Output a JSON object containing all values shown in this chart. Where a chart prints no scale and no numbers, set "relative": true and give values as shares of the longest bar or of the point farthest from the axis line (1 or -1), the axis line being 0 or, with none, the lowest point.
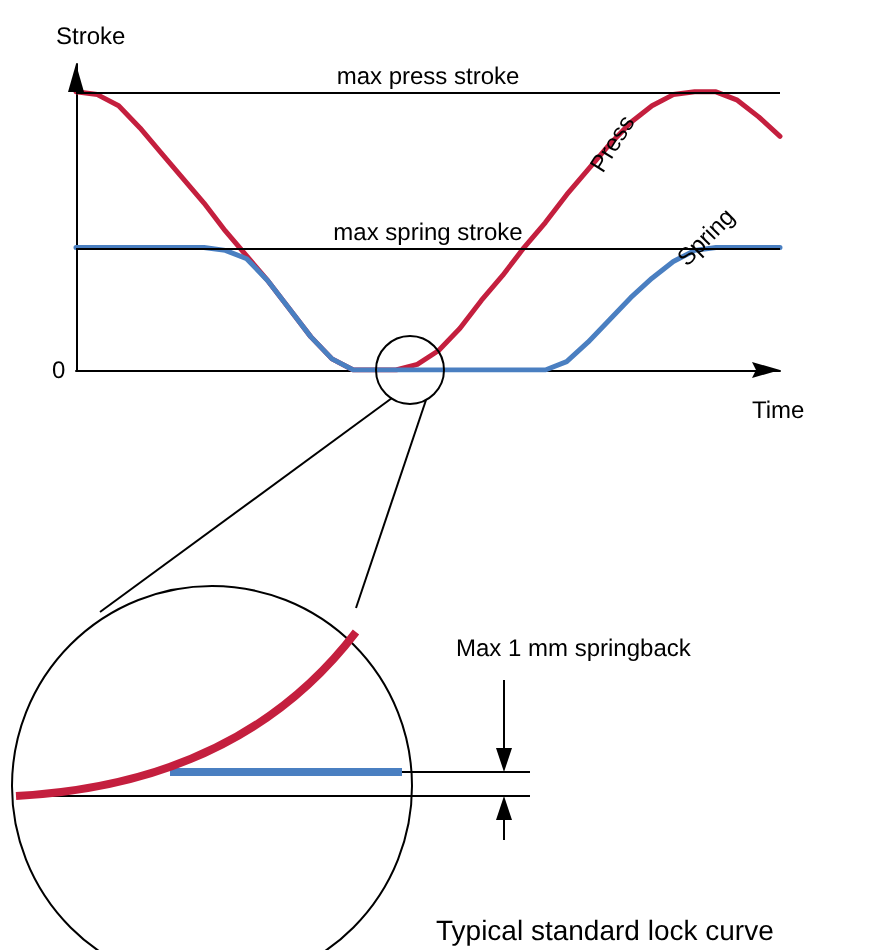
{
  "chart_data": {
    "type": "line",
    "relative": true,
    "xlabel": "Time",
    "ylabel": "Stroke",
    "grid": false,
    "legend": false,
    "marker": "none",
    "line_style": "solid",
    "categories": [
      null,
      null,
      null,
      null,
      null,
      null,
      null,
      null,
      null,
      null,
      null,
      null,
      null,
      null,
      null,
      null,
      null,
      null,
      null,
      null,
      null,
      null,
      null,
      null,
      null,
      null,
      null,
      null,
      null,
      null,
      null,
      null,
      null,
      null
    ],
    "series": [
      {
        "name": "Press",
        "color": "#c41f3e",
        "values": [
          1.0,
          0.99,
          0.95,
          0.87,
          0.78,
          0.69,
          0.6,
          0.5,
          0.41,
          0.32,
          0.22,
          0.12,
          0.04,
          0.0,
          0.0,
          0.0,
          0.02,
          0.07,
          0.15,
          0.25,
          0.34,
          0.44,
          0.53,
          0.63,
          0.72,
          0.81,
          0.89,
          0.95,
          0.99,
          1.0,
          1.0,
          0.97,
          0.91,
          0.84
        ]
      },
      {
        "name": "Spring",
        "color": "#4a7fc1",
        "values": [
          0.44,
          0.44,
          0.44,
          0.44,
          0.44,
          0.44,
          0.44,
          0.43,
          0.4,
          0.32,
          0.22,
          0.12,
          0.04,
          0.0,
          0.0,
          0.0,
          0.0,
          0.0,
          0.0,
          0.0,
          0.0,
          0.0,
          0.0,
          0.03,
          0.1,
          0.18,
          0.26,
          0.33,
          0.39,
          0.43,
          0.44,
          0.44,
          0.44,
          0.44
        ]
      }
    ],
    "ref_lines": [
      {
        "axis": "y",
        "value": 1.0,
        "label": "max press stroke",
        "color": "#000000"
      },
      {
        "axis": "y",
        "value": 0.44,
        "label": "max spring stroke",
        "color": "#000000"
      }
    ],
    "annotations": [
      "Max 1 mm springback",
      "Typical standard lock curve",
      "0"
    ]
  }
}
